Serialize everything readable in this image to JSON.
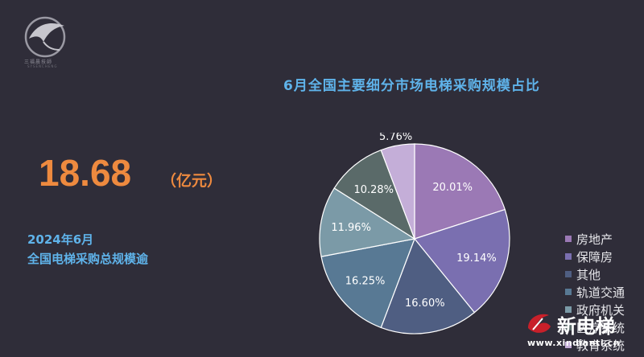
{
  "logo": {
    "name": "三福晨技師",
    "sub": "SYSENCHENG"
  },
  "headline": {
    "value": "18.68",
    "unit": "（亿元）",
    "line1": "2024年6月",
    "line2": "全国电梯采购总规模逾"
  },
  "chart_data": {
    "type": "pie",
    "title": "6月全国主要细分市场电梯采购规模占比",
    "slices": [
      {
        "label": "房地产",
        "value": 20.01,
        "display": "20.01%",
        "color": "#9b79b5"
      },
      {
        "label": "保障房",
        "value": 19.14,
        "display": "19.14%",
        "color": "#7a6fb0"
      },
      {
        "label": "其他",
        "value": 16.6,
        "display": "16.60%",
        "color": "#4f5e82"
      },
      {
        "label": "轨道交通",
        "value": 16.25,
        "display": "16.25%",
        "color": "#587994"
      },
      {
        "label": "政府机关",
        "value": 11.96,
        "display": "11.96%",
        "color": "#7b9aa7"
      },
      {
        "label": "医疗系统",
        "value": 10.28,
        "display": "10.28%",
        "color": "#5a6a69"
      },
      {
        "label": "教育系统",
        "value": 5.76,
        "display": "5.76%",
        "color": "#c4aed8"
      }
    ],
    "legend_position": "right"
  },
  "watermark": {
    "brand": "新电梯",
    "url": "www.xindianti.cn",
    "color": "#c8202a"
  }
}
